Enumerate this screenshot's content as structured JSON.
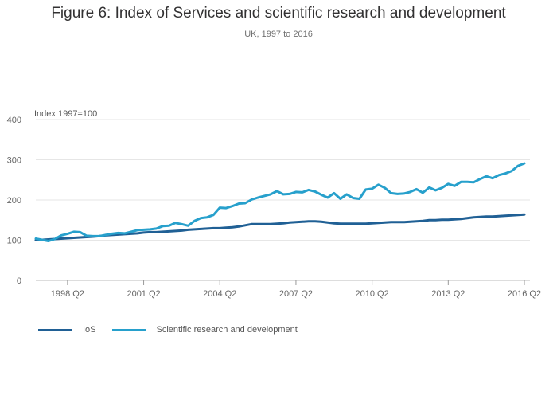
{
  "title": "Figure 6: Index of Services and scientific research and development",
  "subtitle": "UK, 1997 to 2016",
  "chart_data": {
    "type": "line",
    "title": "Figure 6: Index of Services and scientific research and development",
    "subtitle": "UK, 1997 to 2016",
    "ylabel": "Index 1997=100",
    "xlabel": "",
    "ylim": [
      0,
      400
    ],
    "yticks": [
      "0",
      "100",
      "200",
      "300",
      "400"
    ],
    "xlim": [
      "1997 Q1",
      "2016 Q2"
    ],
    "xticks": [
      "1998 Q2",
      "2001 Q2",
      "2004 Q2",
      "2007 Q2",
      "2010 Q2",
      "2013 Q2",
      "2016 Q2"
    ],
    "grid": true,
    "legend_position": "bottom-left",
    "x": [
      "1997 Q1",
      "1997 Q2",
      "1997 Q3",
      "1997 Q4",
      "1998 Q1",
      "1998 Q2",
      "1998 Q3",
      "1998 Q4",
      "1999 Q1",
      "1999 Q2",
      "1999 Q3",
      "1999 Q4",
      "2000 Q1",
      "2000 Q2",
      "2000 Q3",
      "2000 Q4",
      "2001 Q1",
      "2001 Q2",
      "2001 Q3",
      "2001 Q4",
      "2002 Q1",
      "2002 Q2",
      "2002 Q3",
      "2002 Q4",
      "2003 Q1",
      "2003 Q2",
      "2003 Q3",
      "2003 Q4",
      "2004 Q1",
      "2004 Q2",
      "2004 Q3",
      "2004 Q4",
      "2005 Q1",
      "2005 Q2",
      "2005 Q3",
      "2005 Q4",
      "2006 Q1",
      "2006 Q2",
      "2006 Q3",
      "2006 Q4",
      "2007 Q1",
      "2007 Q2",
      "2007 Q3",
      "2007 Q4",
      "2008 Q1",
      "2008 Q2",
      "2008 Q3",
      "2008 Q4",
      "2009 Q1",
      "2009 Q2",
      "2009 Q3",
      "2009 Q4",
      "2010 Q1",
      "2010 Q2",
      "2010 Q3",
      "2010 Q4",
      "2011 Q1",
      "2011 Q2",
      "2011 Q3",
      "2011 Q4",
      "2012 Q1",
      "2012 Q2",
      "2012 Q3",
      "2012 Q4",
      "2013 Q1",
      "2013 Q2",
      "2013 Q3",
      "2013 Q4",
      "2014 Q1",
      "2014 Q2",
      "2014 Q3",
      "2014 Q4",
      "2015 Q1",
      "2015 Q2",
      "2015 Q3",
      "2015 Q4",
      "2016 Q1",
      "2016 Q2"
    ],
    "series": [
      {
        "name": "IoS",
        "color": "#206095",
        "values": [
          100,
          101,
          102,
          103,
          104,
          105,
          106,
          107,
          108,
          109,
          110,
          112,
          113,
          114,
          115,
          116,
          117,
          119,
          120,
          120,
          121,
          122,
          123,
          124,
          126,
          127,
          128,
          129,
          130,
          130,
          131,
          132,
          134,
          137,
          140,
          140,
          140,
          140,
          141,
          142,
          144,
          145,
          146,
          147,
          147,
          146,
          144,
          142,
          141,
          141,
          141,
          141,
          141,
          142,
          143,
          144,
          145,
          145,
          145,
          146,
          147,
          148,
          150,
          150,
          151,
          151,
          152,
          153,
          155,
          157,
          158,
          159,
          159,
          160,
          161,
          162,
          163,
          164
        ]
      },
      {
        "name": "Scientific research and development",
        "color": "#27a0cc",
        "values": [
          104,
          101,
          98,
          103,
          112,
          116,
          121,
          120,
          111,
          110,
          110,
          113,
          116,
          118,
          117,
          121,
          125,
          126,
          127,
          129,
          135,
          136,
          143,
          140,
          136,
          148,
          155,
          157,
          163,
          181,
          180,
          185,
          191,
          192,
          201,
          206,
          210,
          214,
          222,
          214,
          215,
          220,
          219,
          225,
          221,
          213,
          206,
          217,
          203,
          214,
          205,
          203,
          226,
          228,
          238,
          230,
          217,
          215,
          216,
          220,
          227,
          218,
          231,
          224,
          230,
          240,
          235,
          245,
          245,
          244,
          252,
          259,
          254,
          262,
          266,
          272,
          285,
          291
        ]
      }
    ]
  }
}
